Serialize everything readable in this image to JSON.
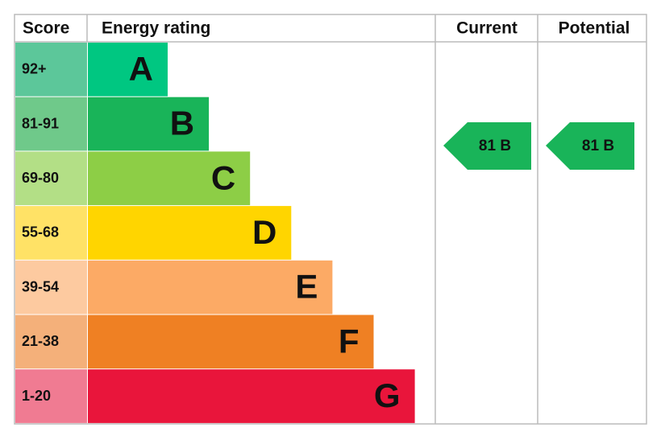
{
  "header": {
    "score": "Score",
    "rating": "Energy rating",
    "current": "Current",
    "potential": "Potential"
  },
  "bands": [
    {
      "score": "92+",
      "letter": "A"
    },
    {
      "score": "81-91",
      "letter": "B"
    },
    {
      "score": "69-80",
      "letter": "C"
    },
    {
      "score": "55-68",
      "letter": "D"
    },
    {
      "score": "39-54",
      "letter": "E"
    },
    {
      "score": "21-38",
      "letter": "F"
    },
    {
      "score": "1-20",
      "letter": "G"
    }
  ],
  "current": "81 B",
  "potential": "81 B"
}
